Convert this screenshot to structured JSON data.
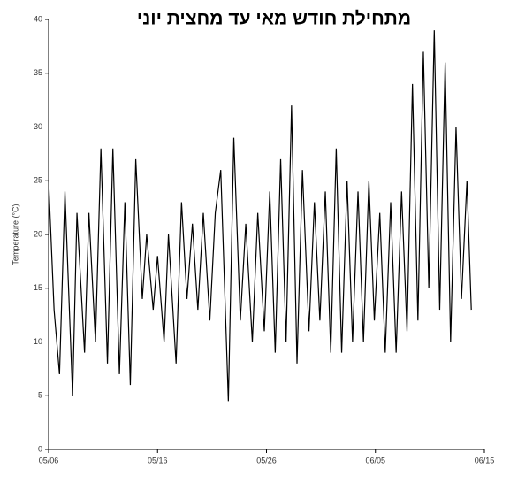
{
  "chart_data": {
    "type": "line",
    "title": "מתחילת חודש מאי עד מחצית יוני",
    "y_label": "Temperature (°C)",
    "x": [
      0,
      0.5,
      1.0,
      1.5,
      2.2,
      2.6,
      3.3,
      3.7,
      4.3,
      4.8,
      5.4,
      5.9,
      6.5,
      7.0,
      7.5,
      8.0,
      8.6,
      9.0,
      9.6,
      10.0,
      10.6,
      11.0,
      11.7,
      12.2,
      12.7,
      13.2,
      13.7,
      14.2,
      14.8,
      15.3,
      15.8,
      16.5,
      17.0,
      17.6,
      18.1,
      18.7,
      19.2,
      19.8,
      20.3,
      20.8,
      21.3,
      21.8,
      22.3,
      22.8,
      23.3,
      23.9,
      24.4,
      24.9,
      25.4,
      25.9,
      26.4,
      26.9,
      27.4,
      27.9,
      28.4,
      28.9,
      29.4,
      29.9,
      30.4,
      30.9,
      31.4,
      31.9,
      32.4,
      32.9,
      33.4,
      33.9,
      34.4,
      34.9,
      35.4,
      35.9,
      36.4,
      36.9,
      37.4,
      37.9,
      38.4,
      38.8
    ],
    "series": [
      {
        "color": "#000000",
        "values": [
          25,
          13,
          7,
          24,
          5,
          22,
          9,
          22,
          10,
          28,
          8,
          28,
          7,
          23,
          6,
          27,
          14,
          20,
          13,
          18,
          10,
          20,
          8,
          23,
          14,
          21,
          13,
          22,
          12,
          22,
          26,
          4.5,
          29,
          12,
          21,
          10,
          22,
          11,
          24,
          9,
          27,
          10,
          32,
          8,
          26,
          11,
          23,
          12,
          24,
          9,
          28,
          9,
          25,
          10,
          24,
          10,
          25,
          12,
          22,
          9,
          23,
          9,
          24,
          11,
          34,
          12,
          37,
          15,
          39,
          13,
          36,
          10,
          30,
          14,
          25,
          13
        ]
      }
    ],
    "xlim": [
      0,
      40
    ],
    "xticks": [
      {
        "value": 0,
        "label": "05/06"
      },
      {
        "value": 10,
        "label": "05/16"
      },
      {
        "value": 20,
        "label": "05/26"
      },
      {
        "value": 30,
        "label": "06/05"
      },
      {
        "value": 40,
        "label": "06/15"
      }
    ],
    "ylim": [
      0,
      40
    ],
    "yticks": [
      0,
      5,
      10,
      15,
      20,
      25,
      30,
      35,
      40
    ]
  }
}
